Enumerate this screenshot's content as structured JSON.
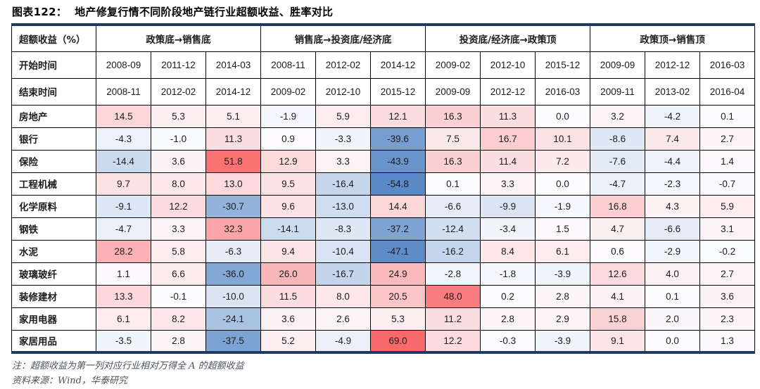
{
  "title": "图表122：  地产修复行情不同阶段地产链行业超额收益、胜率对比",
  "notes": {
    "line1": "注：超额收益为第一列对应行业相对万得全 A 的超额收益",
    "line2": "资料来源：Wind，华泰研究"
  },
  "colors": {
    "positive_max": "#F8696B",
    "negative_max": "#5A8AC6",
    "neutral": "#FCFCFF",
    "rule": "#1F3864",
    "grid": "#000000"
  },
  "heat_scale": {
    "positive_cap": 55,
    "negative_cap": 48
  },
  "chart_data": {
    "type": "table",
    "title": "地产修复行情不同阶段地产链行业超额收益、胜率对比",
    "corner_label": "超额收益（%）",
    "start_row_label": "开始时间",
    "end_row_label": "结束时间",
    "groups": [
      {
        "label": "政策底→销售底",
        "start_dates": [
          "2008-09",
          "2011-12",
          "2014-03"
        ],
        "end_dates": [
          "2008-11",
          "2012-02",
          "2014-12"
        ]
      },
      {
        "label": "销售底→投资底/经济底",
        "start_dates": [
          "2008-11",
          "2012-02",
          "2014-12"
        ],
        "end_dates": [
          "2009-02",
          "2012-10",
          "2015-12"
        ]
      },
      {
        "label": "投资底/经济底→政策顶",
        "start_dates": [
          "2009-02",
          "2012-10",
          "2015-12"
        ],
        "end_dates": [
          "2009-09",
          "2012-12",
          "2016-03"
        ]
      },
      {
        "label": "政策顶→销售顶",
        "start_dates": [
          "2009-09",
          "2012-12",
          "2016-03"
        ],
        "end_dates": [
          "2009-11",
          "2013-02",
          "2016-04"
        ]
      }
    ],
    "rows": [
      {
        "name": "房地产",
        "values": [
          14.5,
          5.3,
          5.1,
          -1.9,
          5.9,
          12.1,
          16.3,
          11.3,
          0.0,
          3.2,
          -4.2,
          0.1
        ]
      },
      {
        "name": "银行",
        "values": [
          -4.3,
          -1.0,
          11.3,
          0.9,
          -3.3,
          -39.6,
          7.5,
          16.7,
          10.1,
          -8.6,
          7.4,
          2.7
        ]
      },
      {
        "name": "保险",
        "values": [
          -14.4,
          3.6,
          51.8,
          12.9,
          3.3,
          -43.9,
          16.3,
          11.4,
          7.2,
          -7.6,
          -4.4,
          1.4
        ]
      },
      {
        "name": "工程机械",
        "values": [
          9.7,
          8.0,
          13.0,
          9.5,
          -16.4,
          -54.8,
          0.1,
          3.3,
          0.0,
          -4.7,
          -2.3,
          -0.7
        ]
      },
      {
        "name": "化学原料",
        "values": [
          -9.1,
          12.2,
          -30.7,
          9.6,
          -13.0,
          14.4,
          -6.6,
          -9.9,
          -1.9,
          16.8,
          4.3,
          5.9
        ]
      },
      {
        "name": "钢铁",
        "values": [
          -4.7,
          3.3,
          32.3,
          -14.1,
          -8.3,
          -37.2,
          -12.4,
          -3.4,
          1.5,
          4.7,
          -6.6,
          3.1
        ]
      },
      {
        "name": "水泥",
        "values": [
          28.2,
          5.8,
          -6.3,
          9.4,
          -10.4,
          -47.1,
          -16.2,
          8.4,
          6.1,
          0.6,
          -2.9,
          -0.2
        ]
      },
      {
        "name": "玻璃玻纤",
        "values": [
          1.1,
          6.6,
          -36.0,
          26.0,
          -16.7,
          24.9,
          -2.8,
          -1.8,
          -3.9,
          12.6,
          4.0,
          2.7
        ]
      },
      {
        "name": "装修建材",
        "values": [
          13.3,
          -0.1,
          -10.0,
          11.5,
          8.0,
          20.5,
          48.0,
          0.2,
          2.8,
          4.1,
          0.1,
          3.6
        ]
      },
      {
        "name": "家用电器",
        "values": [
          6.1,
          8.2,
          -24.1,
          3.6,
          2.6,
          5.3,
          11.2,
          2.8,
          2.9,
          15.8,
          2.0,
          2.3
        ]
      },
      {
        "name": "家居用品",
        "values": [
          -3.5,
          2.8,
          -37.5,
          5.2,
          -4.9,
          69.0,
          12.2,
          -0.3,
          -3.9,
          9.1,
          0.0,
          1.3
        ]
      }
    ]
  }
}
